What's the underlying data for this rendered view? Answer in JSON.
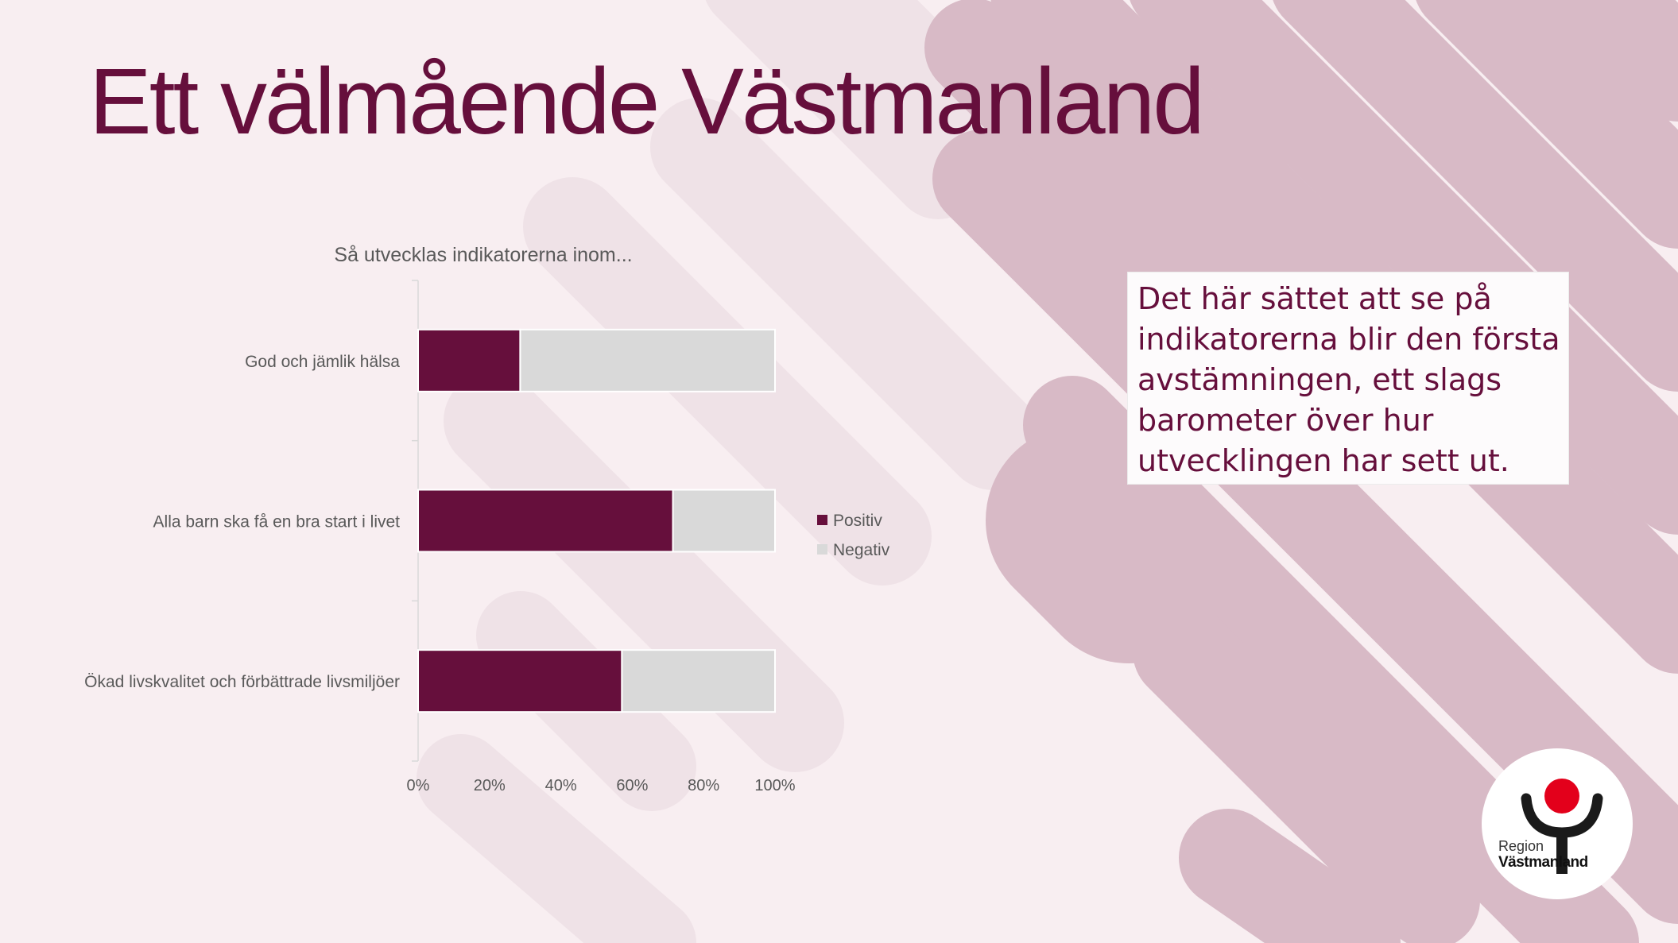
{
  "slide": {
    "title": "Ett välmående Västmanland",
    "note": "Det här sättet att se på indikatorerna blir den första avstämningen, ett slags barometer över hur utvecklingen har sett ut."
  },
  "logo": {
    "region_text": "Region",
    "name_text": "Västmanland"
  },
  "colors": {
    "background": "#f8eef1",
    "title": "#660f3c",
    "positive": "#660f3c",
    "negative": "#d9d9d9",
    "stripe_dark": "#d8bac6",
    "stripe_light": "#efe2e7",
    "logo_red": "#e3001b"
  },
  "chart_data": {
    "type": "bar",
    "orientation": "horizontal",
    "stacked": "percent",
    "title": "Så utvecklas indikatorerna inom...",
    "categories": [
      "God och jämlik hälsa",
      "Alla barn ska få en bra start i livet",
      "Ökad livskvalitet och förbättrade livsmiljöer"
    ],
    "series": [
      {
        "name": "Positiv",
        "values": [
          28.6,
          71.4,
          57.1
        ]
      },
      {
        "name": "Negativ",
        "values": [
          71.4,
          28.6,
          42.9
        ]
      }
    ],
    "xlim": [
      0,
      100
    ],
    "xticks": [
      "0%",
      "20%",
      "40%",
      "60%",
      "80%",
      "100%"
    ],
    "legend": "right",
    "grid": false
  }
}
